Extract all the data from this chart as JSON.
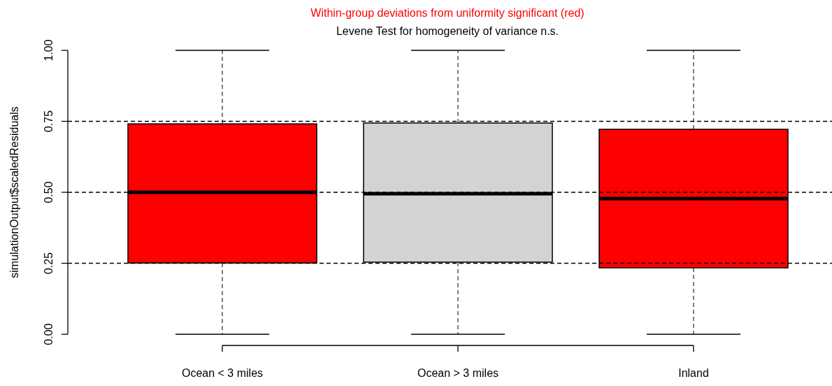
{
  "chart_data": {
    "type": "box",
    "title": "Within-group deviations from uniformity significant (red)",
    "subtitle": "Levene Test for homogeneity of variance n.s.",
    "ylabel": "simulationOutput$scaledResiduals",
    "categories": [
      "Ocean < 3 miles",
      "Ocean > 3 miles",
      "Inland"
    ],
    "colors": [
      "#ff0000",
      "#d3d3d3",
      "#ff0000"
    ],
    "boxes": [
      {
        "low": 0,
        "q1": 0.251,
        "median": 0.5,
        "q3": 0.741,
        "high": 1
      },
      {
        "low": 0,
        "q1": 0.254,
        "median": 0.495,
        "q3": 0.744,
        "high": 1
      },
      {
        "low": 0,
        "q1": 0.234,
        "median": 0.478,
        "q3": 0.722,
        "high": 1
      }
    ],
    "ylim": [
      0,
      1
    ],
    "yticks": [
      {
        "value": 0,
        "label": "0.00"
      },
      {
        "value": 0.25,
        "label": "0.25"
      },
      {
        "value": 0.5,
        "label": "0.50"
      },
      {
        "value": 0.75,
        "label": "0.75"
      },
      {
        "value": 1,
        "label": "1.00"
      }
    ],
    "ref_lines": [
      {
        "axis": "y",
        "value": 0.25,
        "line_style": "dashed"
      },
      {
        "axis": "y",
        "value": 0.5,
        "line_style": "dashed"
      },
      {
        "axis": "y",
        "value": 0.75,
        "line_style": "dashed"
      }
    ],
    "grid": false
  }
}
